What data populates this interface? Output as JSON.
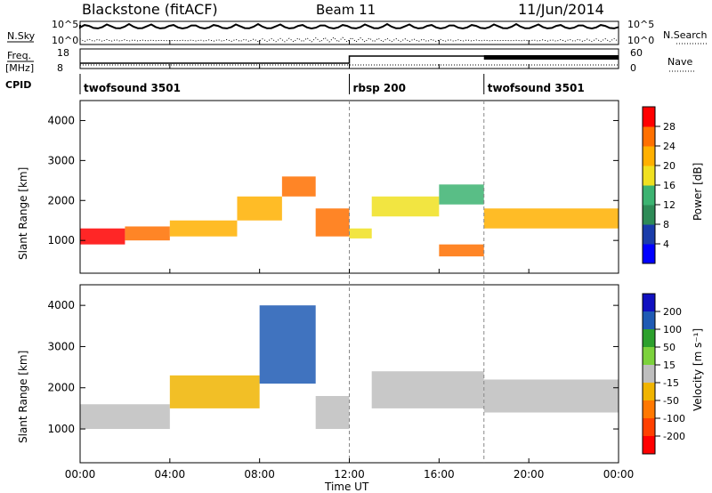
{
  "header": {
    "radar": "Blackstone (fitACF)",
    "beam": "Beam 11",
    "date": "11/Jun/2014"
  },
  "top_panels": {
    "nsky_label": "N.Sky",
    "nsearch_label": "N.Search",
    "nsky_ticks": [
      "10^5",
      "10^0"
    ],
    "nsearch_ticks": [
      "10^5",
      "10^0"
    ],
    "freq_label_1": "Freq.",
    "freq_label_2": "[MHz]",
    "freq_ticks": [
      "18",
      "8"
    ],
    "nave_label": "Nave",
    "nave_ticks": [
      "60",
      "0"
    ],
    "cpid_label": "CPID"
  },
  "cpid_segments": [
    {
      "label": "twofsound 3501",
      "start_hour": 0.0
    },
    {
      "label": "rbsp 200",
      "start_hour": 12.0
    },
    {
      "label": "twofsound 3501",
      "start_hour": 18.0
    }
  ],
  "time_axis": {
    "label": "Time UT",
    "ticks": [
      "00:00",
      "04:00",
      "08:00",
      "12:00",
      "16:00",
      "20:00",
      "00:00"
    ],
    "range_hours": [
      0,
      24
    ]
  },
  "range_axis": {
    "label": "Slant Range [km]",
    "ticks": [
      "1000",
      "2000",
      "3000",
      "4000"
    ],
    "range_km": [
      180,
      4500
    ]
  },
  "power_colorbar": {
    "label": "Power [dB]",
    "ticks": [
      "4",
      "8",
      "12",
      "16",
      "20",
      "24",
      "28"
    ],
    "colors": [
      "#0000ff",
      "#1a3caa",
      "#2e8b57",
      "#3cb371",
      "#f0e020",
      "#ffb000",
      "#ff7000",
      "#ff0000"
    ]
  },
  "velocity_colorbar": {
    "label": "Velocity [m s⁻¹]",
    "ticks": [
      "200",
      "100",
      "50",
      "15",
      "-15",
      "-50",
      "-100",
      "-200"
    ],
    "colors": [
      "#1010c0",
      "#1e5ab4",
      "#2ca02c",
      "#7cd23c",
      "#bebebe",
      "#f0b400",
      "#ff7800",
      "#ff4000",
      "#ff0000"
    ]
  },
  "chart_data": {
    "type": "heatmap",
    "panels": [
      {
        "name": "Power",
        "unit": "dB",
        "bands": [
          {
            "t0": 0.0,
            "t1": 2.0,
            "r0": 900,
            "r1": 1300,
            "level": 28
          },
          {
            "t0": 2.0,
            "t1": 4.0,
            "r0": 1000,
            "r1": 1350,
            "level": 24
          },
          {
            "t0": 4.0,
            "t1": 7.0,
            "r0": 1100,
            "r1": 1500,
            "level": 20
          },
          {
            "t0": 7.0,
            "t1": 9.0,
            "r0": 1500,
            "r1": 2100,
            "level": 20
          },
          {
            "t0": 9.0,
            "t1": 10.5,
            "r0": 2100,
            "r1": 2600,
            "level": 24
          },
          {
            "t0": 10.5,
            "t1": 12.0,
            "r0": 1100,
            "r1": 1800,
            "level": 24
          },
          {
            "t0": 12.0,
            "t1": 13.0,
            "r0": 1050,
            "r1": 1300,
            "level": 16
          },
          {
            "t0": 13.0,
            "t1": 16.0,
            "r0": 1600,
            "r1": 2100,
            "level": 16
          },
          {
            "t0": 16.0,
            "t1": 18.0,
            "r0": 1900,
            "r1": 2400,
            "level": 12
          },
          {
            "t0": 16.0,
            "t1": 18.0,
            "r0": 600,
            "r1": 900,
            "level": 24
          },
          {
            "t0": 18.0,
            "t1": 24.0,
            "r0": 1300,
            "r1": 1800,
            "level": 20
          }
        ]
      },
      {
        "name": "Velocity",
        "unit": "m s^-1",
        "bands": [
          {
            "t0": 0.0,
            "t1": 4.0,
            "r0": 1000,
            "r1": 1600,
            "level": 0
          },
          {
            "t0": 4.0,
            "t1": 8.0,
            "r0": 1500,
            "r1": 2300,
            "level": -40
          },
          {
            "t0": 8.0,
            "t1": 10.5,
            "r0": 2100,
            "r1": 4000,
            "level": 120
          },
          {
            "t0": 10.5,
            "t1": 12.0,
            "r0": 1000,
            "r1": 1800,
            "level": 0
          },
          {
            "t0": 13.0,
            "t1": 18.0,
            "r0": 1500,
            "r1": 2400,
            "level": 0
          },
          {
            "t0": 18.0,
            "t1": 24.0,
            "r0": 1400,
            "r1": 2200,
            "level": 0
          }
        ]
      }
    ]
  }
}
